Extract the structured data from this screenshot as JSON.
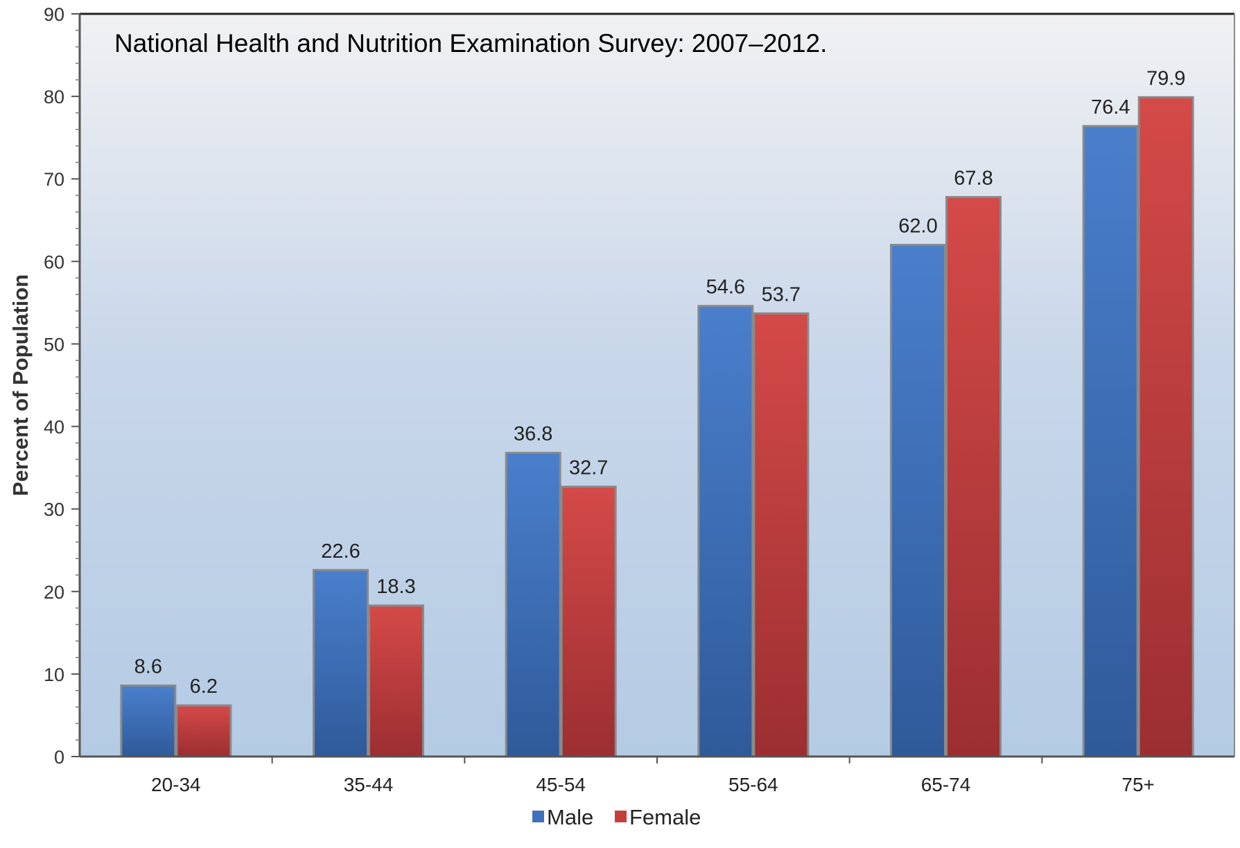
{
  "chart_data": {
    "type": "bar",
    "title": "National Health and Nutrition Examination Survey: 2007–2012.",
    "xlabel": "",
    "ylabel": "Percent of Population",
    "categories": [
      "20-34",
      "35-44",
      "45-54",
      "55-64",
      "65-74",
      "75+"
    ],
    "series": [
      {
        "name": "Male",
        "values": [
          8.6,
          22.6,
          36.8,
          54.6,
          62.0,
          76.4
        ],
        "labels": [
          "8.6",
          "22.6",
          "36.8",
          "54.6",
          "62.0",
          "76.4"
        ],
        "color": "#3f72bd"
      },
      {
        "name": "Female",
        "values": [
          6.2,
          18.3,
          32.7,
          53.7,
          67.8,
          79.9
        ],
        "labels": [
          "6.2",
          "18.3",
          "32.7",
          "53.7",
          "67.8",
          "79.9"
        ],
        "color": "#c63d3d"
      }
    ],
    "ylim": [
      0,
      90
    ],
    "yticks": [
      "0",
      "10",
      "20",
      "30",
      "40",
      "50",
      "60",
      "70",
      "80",
      "90"
    ],
    "grid": false,
    "legend_position": "bottom-center"
  }
}
